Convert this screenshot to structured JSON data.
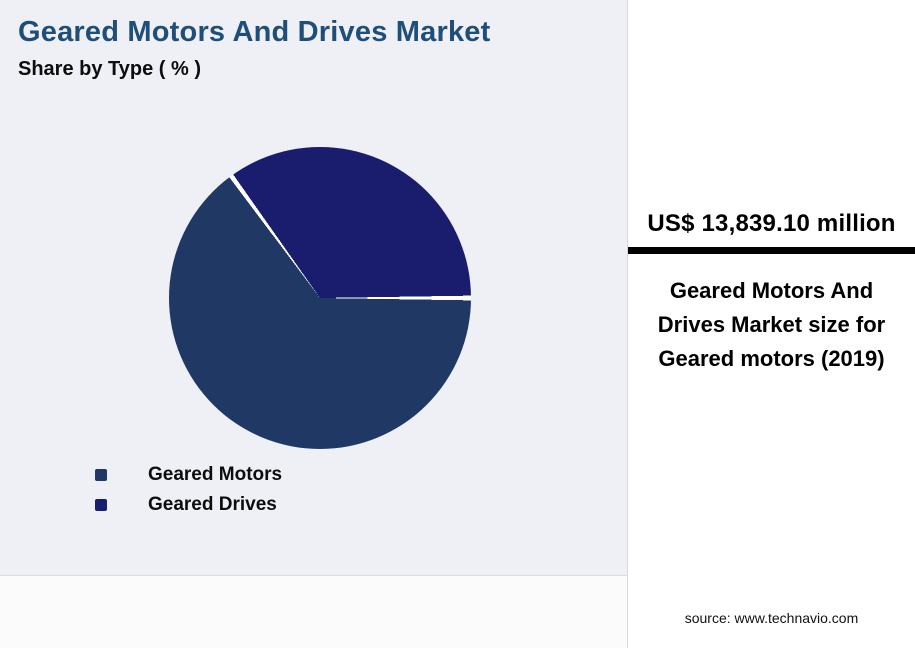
{
  "page": {
    "title": "Geared Motors And Drives Market",
    "subtitle": "Share by Type ( % )",
    "source": "source: www.technavio.com"
  },
  "highlight": {
    "value": "US$ 13,839.10 million",
    "description": "Geared Motors And Drives Market size for Geared motors (2019)"
  },
  "chart_data": {
    "type": "pie",
    "title": "Geared Motors And Drives Market",
    "subtitle": "Share by Type ( % )",
    "legend_position": "bottom-left",
    "data_labels": false,
    "start_angle_deg": 0,
    "segments": [
      {
        "label": "Geared Motors",
        "value": 65,
        "color": "#1F3864"
      },
      {
        "label": "Geared Drives",
        "value": 35,
        "color": "#1A1C6E"
      }
    ],
    "colors": {
      "title": "#1F4E79",
      "background": "#eef0f6",
      "panel": "#ffffff",
      "divider": "#000000"
    }
  }
}
